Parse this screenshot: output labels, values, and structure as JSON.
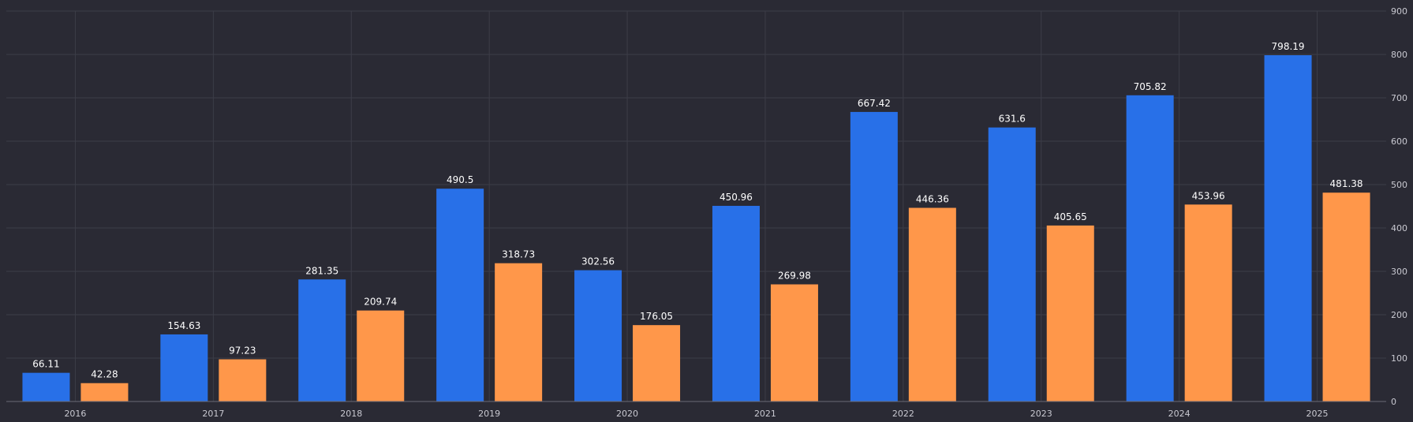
{
  "chart_data": {
    "type": "bar",
    "categories": [
      "2016",
      "2017",
      "2018",
      "2019",
      "2020",
      "2021",
      "2022",
      "2023",
      "2024",
      "2025"
    ],
    "series": [
      {
        "values": [
          66.11,
          154.63,
          281.35,
          490.5,
          302.56,
          450.96,
          667.42,
          631.6,
          705.82,
          798.19
        ],
        "color": "#2870e8"
      },
      {
        "values": [
          42.28,
          97.23,
          209.74,
          318.73,
          176.05,
          269.98,
          446.36,
          405.65,
          453.96,
          481.38
        ],
        "color": "#ff974a"
      }
    ],
    "yticks": [
      "0",
      "100",
      "200",
      "300",
      "400",
      "500",
      "600",
      "700",
      "800",
      "900"
    ],
    "ylim": [
      0,
      900
    ],
    "y_axis_side": "right",
    "grid": true,
    "legend": "none",
    "title": "",
    "xlabel": "",
    "ylabel": "",
    "colors": {
      "background": "#2a2a34",
      "grid": "#3c3d48",
      "text": "#c9c9d1",
      "label": "#ffffff"
    }
  }
}
